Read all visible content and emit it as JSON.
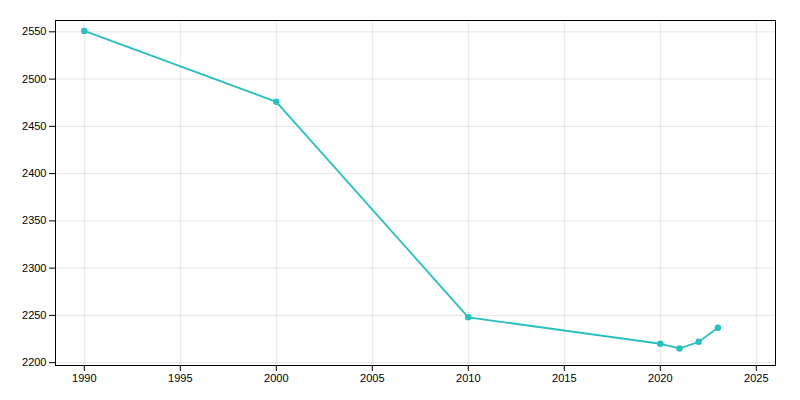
{
  "chart_data": {
    "type": "line",
    "x": [
      1990,
      2000,
      2010,
      2020,
      2021,
      2022,
      2023
    ],
    "values": [
      2551,
      2476,
      2248,
      2220,
      2215,
      2222,
      2237
    ],
    "color": "#2ABFBF",
    "marker": "o",
    "xlim": [
      1988.5,
      2026
    ],
    "ylim": [
      2197,
      2562
    ],
    "xticks": [
      1990,
      1995,
      2000,
      2005,
      2010,
      2015,
      2020,
      2025
    ],
    "yticks": [
      2200,
      2250,
      2300,
      2350,
      2400,
      2450,
      2500,
      2550
    ],
    "grid": true
  }
}
